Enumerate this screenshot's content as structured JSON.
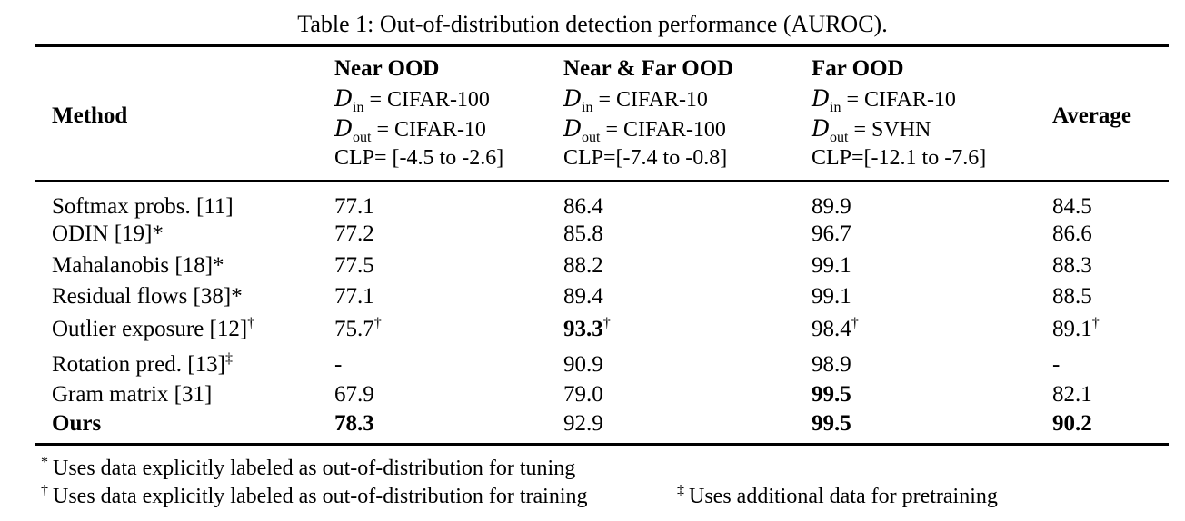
{
  "caption": "Table 1: Out-of-distribution detection performance (AUROC).",
  "table": {
    "method_header": "Method",
    "average_header": "Average",
    "d_symbol": "D",
    "d_in_sub": "in",
    "d_out_sub": "out",
    "groups": [
      {
        "name": "Near OOD",
        "din_rest": "= CIFAR-100",
        "dout_rest": "= CIFAR-10",
        "clp": "CLP= [-4.5 to -2.6]"
      },
      {
        "name": "Near & Far OOD",
        "din_rest": "= CIFAR-10",
        "dout_rest": "= CIFAR-100",
        "clp": "CLP=[-7.4 to -0.8]"
      },
      {
        "name": "Far OOD",
        "din_rest": "= CIFAR-10",
        "dout_rest": "= SVHN",
        "clp": "CLP=[-12.1 to -7.6]"
      }
    ],
    "rows": [
      {
        "method": "Softmax probs. [11]",
        "method_sup": "",
        "method_bold": false,
        "values": [
          {
            "v": "77.1",
            "sup": "",
            "bold": false
          },
          {
            "v": "86.4",
            "sup": "",
            "bold": false
          },
          {
            "v": "89.9",
            "sup": "",
            "bold": false
          },
          {
            "v": "84.5",
            "sup": "",
            "bold": false
          }
        ]
      },
      {
        "method": "ODIN [19]*",
        "method_sup": "",
        "method_bold": false,
        "values": [
          {
            "v": "77.2",
            "sup": "",
            "bold": false
          },
          {
            "v": "85.8",
            "sup": "",
            "bold": false
          },
          {
            "v": "96.7",
            "sup": "",
            "bold": false
          },
          {
            "v": "86.6",
            "sup": "",
            "bold": false
          }
        ]
      },
      {
        "method": "Mahalanobis [18]*",
        "method_sup": "",
        "method_bold": false,
        "values": [
          {
            "v": "77.5",
            "sup": "",
            "bold": false
          },
          {
            "v": "88.2",
            "sup": "",
            "bold": false
          },
          {
            "v": "99.1",
            "sup": "",
            "bold": false
          },
          {
            "v": "88.3",
            "sup": "",
            "bold": false
          }
        ]
      },
      {
        "method": "Residual flows [38]*",
        "method_sup": "",
        "method_bold": false,
        "values": [
          {
            "v": "77.1",
            "sup": "",
            "bold": false
          },
          {
            "v": "89.4",
            "sup": "",
            "bold": false
          },
          {
            "v": "99.1",
            "sup": "",
            "bold": false
          },
          {
            "v": "88.5",
            "sup": "",
            "bold": false
          }
        ]
      },
      {
        "method": "Outlier exposure [12]",
        "method_sup": "†",
        "method_bold": false,
        "values": [
          {
            "v": "75.7",
            "sup": "†",
            "bold": false
          },
          {
            "v": "93.3",
            "sup": "†",
            "bold": true
          },
          {
            "v": "98.4",
            "sup": "†",
            "bold": false
          },
          {
            "v": "89.1",
            "sup": "†",
            "bold": false
          }
        ]
      },
      {
        "method": "Rotation pred. [13]",
        "method_sup": "‡",
        "method_bold": false,
        "values": [
          {
            "v": "-",
            "sup": "",
            "bold": false
          },
          {
            "v": "90.9",
            "sup": "",
            "bold": false
          },
          {
            "v": "98.9",
            "sup": "",
            "bold": false
          },
          {
            "v": "-",
            "sup": "",
            "bold": false
          }
        ]
      },
      {
        "method": "Gram matrix [31]",
        "method_sup": "",
        "method_bold": false,
        "values": [
          {
            "v": "67.9",
            "sup": "",
            "bold": false
          },
          {
            "v": "79.0",
            "sup": "",
            "bold": false
          },
          {
            "v": "99.5",
            "sup": "",
            "bold": true
          },
          {
            "v": "82.1",
            "sup": "",
            "bold": false
          }
        ]
      },
      {
        "method": "Ours",
        "method_sup": "",
        "method_bold": true,
        "values": [
          {
            "v": "78.3",
            "sup": "",
            "bold": true
          },
          {
            "v": "92.9",
            "sup": "",
            "bold": false
          },
          {
            "v": "99.5",
            "sup": "",
            "bold": true
          },
          {
            "v": "90.2",
            "sup": "",
            "bold": true
          }
        ]
      }
    ]
  },
  "footnotes": [
    {
      "marker": "*",
      "text": "Uses data explicitly labeled as out-of-distribution for tuning"
    },
    {
      "marker": "†",
      "text": "Uses data explicitly labeled as out-of-distribution for training"
    },
    {
      "marker": "‡",
      "text": "Uses additional data for pretraining"
    }
  ]
}
